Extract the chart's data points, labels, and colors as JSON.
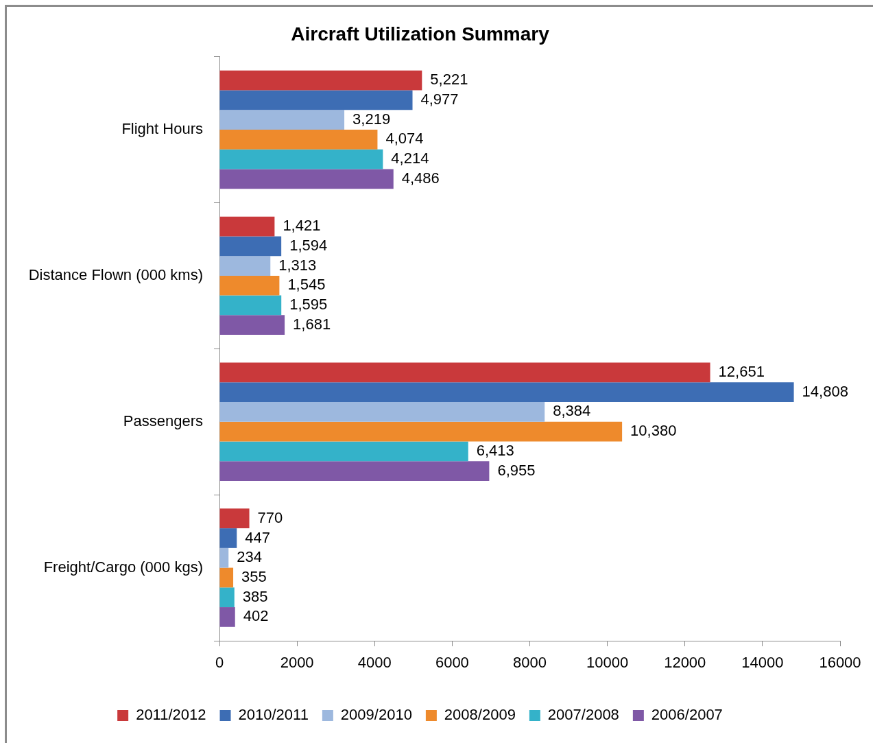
{
  "chart_data": {
    "type": "bar",
    "orientation": "horizontal",
    "title": "Aircraft Utilization Summary",
    "categories": [
      "Flight Hours",
      "Distance Flown (000 kms)",
      "Passengers",
      "Freight/Cargo (000 kgs)"
    ],
    "series": [
      {
        "name": "2011/2012",
        "color": "#c9393b",
        "values": [
          5221,
          1421,
          12651,
          770
        ],
        "value_labels": [
          "5,221",
          "1,421",
          "12,651",
          "770"
        ]
      },
      {
        "name": "2010/2011",
        "color": "#3d6db4",
        "values": [
          4977,
          1594,
          14808,
          447
        ],
        "value_labels": [
          "4,977",
          "1,594",
          "14,808",
          "447"
        ]
      },
      {
        "name": "2009/2010",
        "color": "#9db8de",
        "values": [
          3219,
          1313,
          8384,
          234
        ],
        "value_labels": [
          "3,219",
          "1,313",
          "8,384",
          "234"
        ]
      },
      {
        "name": "2008/2009",
        "color": "#ee8a2c",
        "values": [
          4074,
          1545,
          10380,
          355
        ],
        "value_labels": [
          "4,074",
          "1,545",
          "10,380",
          "355"
        ]
      },
      {
        "name": "2007/2008",
        "color": "#34b2c9",
        "values": [
          4214,
          1595,
          6413,
          385
        ],
        "value_labels": [
          "4,214",
          "1,595",
          "6,413",
          "385"
        ]
      },
      {
        "name": "2006/2007",
        "color": "#7f58a6",
        "values": [
          4486,
          1681,
          6955,
          402
        ],
        "value_labels": [
          "4,486",
          "1,681",
          "6,955",
          "402"
        ]
      }
    ],
    "xlim": [
      0,
      16000
    ],
    "xticks": [
      0,
      2000,
      4000,
      6000,
      8000,
      10000,
      12000,
      14000,
      16000
    ],
    "grid": false,
    "legend": "bottom"
  }
}
